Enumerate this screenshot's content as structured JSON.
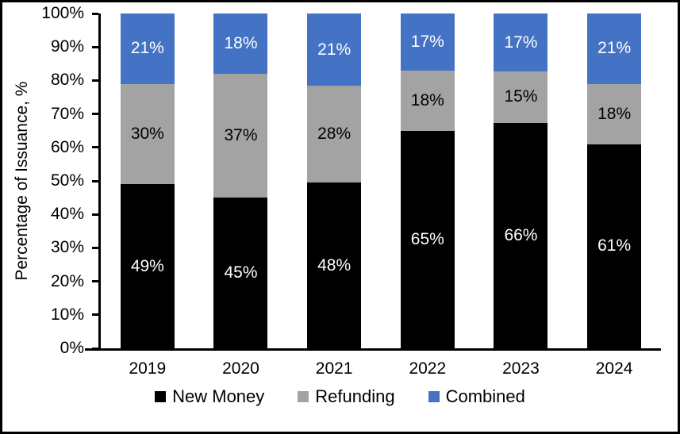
{
  "figure": {
    "background": "#ffffff",
    "border_color": "#000000"
  },
  "chart_data": {
    "type": "bar",
    "variant": "stacked-percent",
    "title": "",
    "xlabel": "",
    "ylabel": "Percentage of Issuance, %",
    "ylim": [
      0,
      100
    ],
    "ytick_step": 10,
    "yticks": [
      "0%",
      "10%",
      "20%",
      "30%",
      "40%",
      "50%",
      "60%",
      "70%",
      "80%",
      "90%",
      "100%"
    ],
    "grid": false,
    "legend_position": "bottom",
    "data_label_suffix": "%",
    "categories": [
      "2019",
      "2020",
      "2021",
      "2022",
      "2023",
      "2024"
    ],
    "series": [
      {
        "name": "New Money",
        "color": "#000000",
        "label_color": "#ffffff",
        "values": [
          49,
          45,
          48,
          65,
          66,
          61
        ]
      },
      {
        "name": "Refunding",
        "color": "#a3a3a3",
        "label_color": "#000000",
        "values": [
          30,
          37,
          28,
          18,
          15,
          18
        ]
      },
      {
        "name": "Combined",
        "color": "#4472c4",
        "label_color": "#ffffff",
        "values": [
          21,
          18,
          21,
          17,
          17,
          21
        ]
      }
    ]
  }
}
